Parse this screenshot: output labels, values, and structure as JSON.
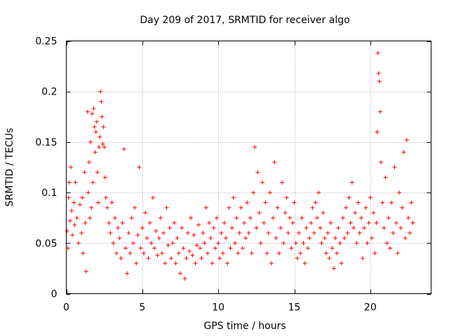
{
  "chart_data": {
    "type": "scatter",
    "title": "Day 209 of 2017, SRMTID for receiver algo",
    "xlabel": "GPS time / hours",
    "ylabel": "SRMTID / TECUs",
    "xlim": [
      0,
      24
    ],
    "ylim": [
      0,
      0.25
    ],
    "xticks": [
      0,
      5,
      10,
      15,
      20
    ],
    "xtick_labels": [
      "0",
      "5",
      "10",
      "15",
      "20"
    ],
    "yticks": [
      0,
      0.05,
      0.1,
      0.15,
      0.2,
      0.25
    ],
    "ytick_labels": [
      "0",
      "0.05",
      "0.1",
      "0.15",
      "0.2",
      "0.25"
    ],
    "grid": true,
    "marker": "+",
    "series": [
      {
        "name": "SRMTID",
        "color": "#ff0000",
        "points": [
          [
            0.05,
            0.062
          ],
          [
            0.1,
            0.045
          ],
          [
            0.15,
            0.095
          ],
          [
            0.2,
            0.11
          ],
          [
            0.25,
            0.072
          ],
          [
            0.3,
            0.125
          ],
          [
            0.35,
            0.082
          ],
          [
            0.4,
            0.058
          ],
          [
            0.5,
            0.09
          ],
          [
            0.55,
            0.068
          ],
          [
            0.6,
            0.11
          ],
          [
            0.7,
            0.075
          ],
          [
            0.8,
            0.05
          ],
          [
            0.9,
            0.088
          ],
          [
            1.0,
            0.06
          ],
          [
            1.05,
            0.095
          ],
          [
            1.1,
            0.04
          ],
          [
            1.2,
            0.12
          ],
          [
            1.25,
            0.07
          ],
          [
            1.3,
            0.022
          ],
          [
            1.4,
            0.18
          ],
          [
            1.45,
            0.1
          ],
          [
            1.5,
            0.13
          ],
          [
            1.55,
            0.075
          ],
          [
            1.6,
            0.15
          ],
          [
            1.65,
            0.085
          ],
          [
            1.7,
            0.178
          ],
          [
            1.75,
            0.11
          ],
          [
            1.8,
            0.183
          ],
          [
            1.85,
            0.165
          ],
          [
            1.9,
            0.14
          ],
          [
            1.95,
            0.16
          ],
          [
            2.0,
            0.17
          ],
          [
            2.05,
            0.12
          ],
          [
            2.1,
            0.09
          ],
          [
            2.15,
            0.145
          ],
          [
            2.2,
            0.155
          ],
          [
            2.25,
            0.2
          ],
          [
            2.3,
            0.19
          ],
          [
            2.35,
            0.175
          ],
          [
            2.4,
            0.148
          ],
          [
            2.45,
            0.165
          ],
          [
            2.5,
            0.145
          ],
          [
            2.55,
            0.115
          ],
          [
            2.6,
            0.095
          ],
          [
            2.7,
            0.085
          ],
          [
            2.8,
            0.07
          ],
          [
            2.9,
            0.06
          ],
          [
            3.0,
            0.09
          ],
          [
            3.1,
            0.05
          ],
          [
            3.2,
            0.075
          ],
          [
            3.3,
            0.04
          ],
          [
            3.4,
            0.065
          ],
          [
            3.5,
            0.055
          ],
          [
            3.6,
            0.035
          ],
          [
            3.7,
            0.07
          ],
          [
            3.8,
            0.143
          ],
          [
            3.9,
            0.045
          ],
          [
            4.0,
            0.02
          ],
          [
            4.1,
            0.06
          ],
          [
            4.2,
            0.04
          ],
          [
            4.3,
            0.075
          ],
          [
            4.4,
            0.05
          ],
          [
            4.5,
            0.085
          ],
          [
            4.6,
            0.03
          ],
          [
            4.7,
            0.058
          ],
          [
            4.8,
            0.125
          ],
          [
            4.9,
            0.045
          ],
          [
            5.0,
            0.065
          ],
          [
            5.1,
            0.04
          ],
          [
            5.2,
            0.08
          ],
          [
            5.3,
            0.055
          ],
          [
            5.4,
            0.035
          ],
          [
            5.5,
            0.07
          ],
          [
            5.6,
            0.05
          ],
          [
            5.7,
            0.095
          ],
          [
            5.8,
            0.045
          ],
          [
            5.9,
            0.062
          ],
          [
            6.0,
            0.038
          ],
          [
            6.1,
            0.055
          ],
          [
            6.2,
            0.075
          ],
          [
            6.3,
            0.04
          ],
          [
            6.4,
            0.06
          ],
          [
            6.5,
            0.03
          ],
          [
            6.6,
            0.085
          ],
          [
            6.7,
            0.048
          ],
          [
            6.8,
            0.065
          ],
          [
            6.9,
            0.035
          ],
          [
            7.0,
            0.05
          ],
          [
            7.1,
            0.07
          ],
          [
            7.2,
            0.03
          ],
          [
            7.3,
            0.055
          ],
          [
            7.4,
            0.04
          ],
          [
            7.5,
            0.02
          ],
          [
            7.6,
            0.065
          ],
          [
            7.7,
            0.045
          ],
          [
            7.8,
            0.015
          ],
          [
            7.9,
            0.035
          ],
          [
            8.0,
            0.06
          ],
          [
            8.1,
            0.042
          ],
          [
            8.2,
            0.075
          ],
          [
            8.3,
            0.038
          ],
          [
            8.4,
            0.058
          ],
          [
            8.5,
            0.03
          ],
          [
            8.6,
            0.048
          ],
          [
            8.7,
            0.068
          ],
          [
            8.8,
            0.045
          ],
          [
            8.9,
            0.035
          ],
          [
            9.0,
            0.06
          ],
          [
            9.1,
            0.05
          ],
          [
            9.2,
            0.085
          ],
          [
            9.3,
            0.04
          ],
          [
            9.4,
            0.07
          ],
          [
            9.5,
            0.055
          ],
          [
            9.6,
            0.03
          ],
          [
            9.7,
            0.065
          ],
          [
            9.8,
            0.045
          ],
          [
            9.9,
            0.075
          ],
          [
            10.0,
            0.05
          ],
          [
            10.1,
            0.035
          ],
          [
            10.2,
            0.06
          ],
          [
            10.3,
            0.04
          ],
          [
            10.4,
            0.07
          ],
          [
            10.5,
            0.055
          ],
          [
            10.6,
            0.03
          ],
          [
            10.7,
            0.085
          ],
          [
            10.8,
            0.045
          ],
          [
            10.9,
            0.065
          ],
          [
            11.0,
            0.095
          ],
          [
            11.1,
            0.05
          ],
          [
            11.2,
            0.075
          ],
          [
            11.3,
            0.04
          ],
          [
            11.4,
            0.06
          ],
          [
            11.5,
            0.085
          ],
          [
            11.6,
            0.045
          ],
          [
            11.7,
            0.07
          ],
          [
            11.8,
            0.055
          ],
          [
            11.9,
            0.09
          ],
          [
            12.0,
            0.06
          ],
          [
            12.1,
            0.075
          ],
          [
            12.2,
            0.04
          ],
          [
            12.3,
            0.1
          ],
          [
            12.4,
            0.145
          ],
          [
            12.5,
            0.065
          ],
          [
            12.6,
            0.12
          ],
          [
            12.7,
            0.08
          ],
          [
            12.8,
            0.05
          ],
          [
            12.9,
            0.11
          ],
          [
            13.0,
            0.07
          ],
          [
            13.1,
            0.09
          ],
          [
            13.2,
            0.04
          ],
          [
            13.3,
            0.06
          ],
          [
            13.4,
            0.1
          ],
          [
            13.5,
            0.03
          ],
          [
            13.6,
            0.075
          ],
          [
            13.7,
            0.13
          ],
          [
            13.8,
            0.055
          ],
          [
            13.9,
            0.085
          ],
          [
            14.0,
            0.04
          ],
          [
            14.1,
            0.065
          ],
          [
            14.2,
            0.11
          ],
          [
            14.3,
            0.05
          ],
          [
            14.4,
            0.08
          ],
          [
            14.5,
            0.095
          ],
          [
            14.6,
            0.06
          ],
          [
            14.7,
            0.075
          ],
          [
            14.8,
            0.045
          ],
          [
            14.9,
            0.07
          ],
          [
            15.0,
            0.09
          ],
          [
            15.1,
            0.05
          ],
          [
            15.2,
            0.035
          ],
          [
            15.3,
            0.06
          ],
          [
            15.4,
            0.04
          ],
          [
            15.5,
            0.075
          ],
          [
            15.6,
            0.05
          ],
          [
            15.7,
            0.03
          ],
          [
            15.8,
            0.065
          ],
          [
            15.9,
            0.045
          ],
          [
            16.0,
            0.055
          ],
          [
            16.1,
            0.07
          ],
          [
            16.2,
            0.085
          ],
          [
            16.3,
            0.06
          ],
          [
            16.4,
            0.09
          ],
          [
            16.5,
            0.075
          ],
          [
            16.6,
            0.1
          ],
          [
            16.7,
            0.065
          ],
          [
            16.8,
            0.05
          ],
          [
            16.9,
            0.08
          ],
          [
            17.0,
            0.055
          ],
          [
            17.1,
            0.04
          ],
          [
            17.2,
            0.06
          ],
          [
            17.3,
            0.035
          ],
          [
            17.4,
            0.07
          ],
          [
            17.5,
            0.045
          ],
          [
            17.6,
            0.025
          ],
          [
            17.7,
            0.055
          ],
          [
            17.8,
            0.04
          ],
          [
            17.9,
            0.065
          ],
          [
            18.0,
            0.05
          ],
          [
            18.1,
            0.03
          ],
          [
            18.2,
            0.075
          ],
          [
            18.3,
            0.055
          ],
          [
            18.4,
            0.085
          ],
          [
            18.5,
            0.06
          ],
          [
            18.6,
            0.095
          ],
          [
            18.7,
            0.07
          ],
          [
            18.8,
            0.11
          ],
          [
            18.9,
            0.065
          ],
          [
            19.0,
            0.08
          ],
          [
            19.1,
            0.05
          ],
          [
            19.2,
            0.09
          ],
          [
            19.3,
            0.06
          ],
          [
            19.4,
            0.075
          ],
          [
            19.5,
            0.035
          ],
          [
            19.6,
            0.065
          ],
          [
            19.7,
            0.085
          ],
          [
            19.8,
            0.05
          ],
          [
            19.9,
            0.07
          ],
          [
            20.0,
            0.095
          ],
          [
            20.1,
            0.055
          ],
          [
            20.2,
            0.08
          ],
          [
            20.3,
            0.04
          ],
          [
            20.4,
            0.07
          ],
          [
            20.45,
            0.16
          ],
          [
            20.5,
            0.238
          ],
          [
            20.55,
            0.218
          ],
          [
            20.6,
            0.21
          ],
          [
            20.65,
            0.18
          ],
          [
            20.7,
            0.13
          ],
          [
            20.8,
            0.09
          ],
          [
            20.9,
            0.065
          ],
          [
            21.0,
            0.115
          ],
          [
            21.1,
            0.05
          ],
          [
            21.2,
            0.075
          ],
          [
            21.3,
            0.045
          ],
          [
            21.4,
            0.09
          ],
          [
            21.5,
            0.06
          ],
          [
            21.6,
            0.125
          ],
          [
            21.7,
            0.07
          ],
          [
            21.8,
            0.04
          ],
          [
            21.9,
            0.1
          ],
          [
            22.0,
            0.065
          ],
          [
            22.1,
            0.085
          ],
          [
            22.2,
            0.14
          ],
          [
            22.3,
            0.055
          ],
          [
            22.4,
            0.152
          ],
          [
            22.5,
            0.075
          ],
          [
            22.6,
            0.06
          ],
          [
            22.7,
            0.09
          ],
          [
            22.8,
            0.07
          ]
        ]
      }
    ]
  }
}
